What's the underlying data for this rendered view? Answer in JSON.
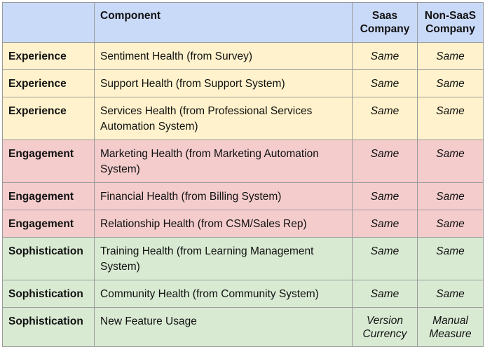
{
  "headers": {
    "category": "",
    "component": "Component",
    "saas": "Saas Company",
    "nonsaas": "Non-SaaS Company"
  },
  "rows": [
    {
      "category": "Experience",
      "component": "Sentiment Health (from Survey)",
      "saas": "Same",
      "nonsaas": "Same"
    },
    {
      "category": "Experience",
      "component": "Support Health (from Support System)",
      "saas": "Same",
      "nonsaas": "Same"
    },
    {
      "category": "Experience",
      "component": "Services Health (from Professional Services Automation System)",
      "saas": "Same",
      "nonsaas": "Same"
    },
    {
      "category": "Engagement",
      "component": "Marketing Health (from Marketing Automation System)",
      "saas": "Same",
      "nonsaas": "Same"
    },
    {
      "category": "Engagement",
      "component": "Financial Health (from Billing System)",
      "saas": "Same",
      "nonsaas": "Same"
    },
    {
      "category": "Engagement",
      "component": "Relationship Health (from CSM/Sales Rep)",
      "saas": "Same",
      "nonsaas": "Same"
    },
    {
      "category": "Sophistication",
      "component": "Training Health (from Learning Management System)",
      "saas": "Same",
      "nonsaas": "Same"
    },
    {
      "category": "Sophistication",
      "component": "Community Health (from Community System)",
      "saas": "Same",
      "nonsaas": "Same"
    },
    {
      "category": "Sophistication",
      "component": "New Feature Usage",
      "saas": "Version Currency",
      "nonsaas": "Manual Measure"
    }
  ],
  "colors": {
    "header": "#c9daf8",
    "experience": "#fff2cc",
    "engagement": "#f4cccc",
    "sophistication": "#d9ead3",
    "border": "#9a9a9a"
  }
}
